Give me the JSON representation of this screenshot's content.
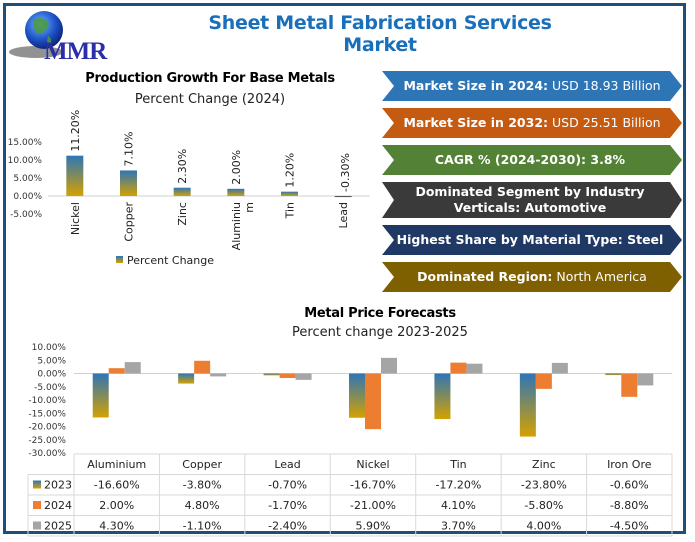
{
  "header": {
    "logo_text": "MMR",
    "title": "Sheet Metal Fabrication Services Market"
  },
  "banners": [
    {
      "label": "Market Size in 2024:",
      "value": "USD 18.93 Billion",
      "color": "#2e75b6"
    },
    {
      "label": "Market Size in 2032:",
      "value": "USD 25.51 Billion",
      "color": "#c55a11"
    },
    {
      "label": "CAGR % (2024-2030): 3.8%",
      "value": "",
      "color": "#538135"
    },
    {
      "label": "Dominated Segment by Industry Verticals: Automotive",
      "value": "",
      "color": "#3a3a3a"
    },
    {
      "label": "Highest Share by Material Type: Steel",
      "value": "",
      "color": "#1f3864"
    },
    {
      "label": "Dominated Region:",
      "value": "North America",
      "color": "#7f6000"
    }
  ],
  "chart_data": [
    {
      "type": "bar",
      "title": "Production Growth For Base Metals",
      "subtitle": "Percent Change (2024)",
      "categories": [
        "Nickel",
        "Copper",
        "Zinc",
        "Aluminium",
        "Tin",
        "Lead"
      ],
      "category_display": [
        [
          "Nickel"
        ],
        [
          "Copper"
        ],
        [
          "Zinc"
        ],
        [
          "Aluminiu",
          "m"
        ],
        [
          "Tin"
        ],
        [
          "Lead"
        ]
      ],
      "values": [
        11.2,
        7.1,
        2.3,
        2.0,
        1.2,
        -0.3
      ],
      "data_labels": [
        "11.20%",
        "7.10%",
        "2.30%",
        "2.00%",
        "1.20%",
        "-0.30%"
      ],
      "yticks": [
        "15.00%",
        "10.00%",
        "5.00%",
        "0.00%",
        "-5.00%"
      ],
      "ytick_values": [
        15,
        10,
        5,
        0,
        -5
      ],
      "ylim": [
        -5,
        15
      ],
      "legend": [
        "Percent Change"
      ],
      "legend_position": "bottom",
      "xlabel": "",
      "ylabel": "",
      "colors": {
        "top": "#2e75b6",
        "bottom": "#d4a100"
      }
    },
    {
      "type": "bar",
      "title": "Metal Price Forecasts",
      "subtitle": "Percent change 2023-2025",
      "categories": [
        "Aluminium",
        "Copper",
        "Lead",
        "Nickel",
        "Tin",
        "Zinc",
        "Iron Ore"
      ],
      "series": [
        {
          "name": "2023",
          "values": [
            -16.6,
            -3.8,
            -0.7,
            -16.7,
            -17.2,
            -23.8,
            -0.6
          ],
          "labels": [
            "-16.60%",
            "-3.80%",
            "-0.70%",
            "-16.70%",
            "-17.20%",
            "-23.80%",
            "-0.60%"
          ],
          "color": "gradient"
        },
        {
          "name": "2024",
          "values": [
            2.0,
            4.8,
            -1.7,
            -21.0,
            4.1,
            -5.8,
            -8.8
          ],
          "labels": [
            "2.00%",
            "4.80%",
            "-1.70%",
            "-21.00%",
            "4.10%",
            "-5.80%",
            "-8.80%"
          ],
          "color": "#ed7d31"
        },
        {
          "name": "2025",
          "values": [
            4.3,
            -1.1,
            -2.4,
            5.9,
            3.7,
            4.0,
            -4.5
          ],
          "labels": [
            "4.30%",
            "-1.10%",
            "-2.40%",
            "5.90%",
            "3.70%",
            "4.00%",
            "-4.50%"
          ],
          "color": "#a5a5a5"
        }
      ],
      "yticks": [
        "10.00%",
        "5.00%",
        "0.00%",
        "-5.00%",
        "-10.00%",
        "-15.00%",
        "-20.00%",
        "-25.00%",
        "-30.00%"
      ],
      "ytick_values": [
        10,
        5,
        0,
        -5,
        -10,
        -15,
        -20,
        -25,
        -30
      ],
      "ylim": [
        -30,
        10
      ],
      "legend_position": "data-table",
      "xlabel": "",
      "ylabel": ""
    }
  ]
}
